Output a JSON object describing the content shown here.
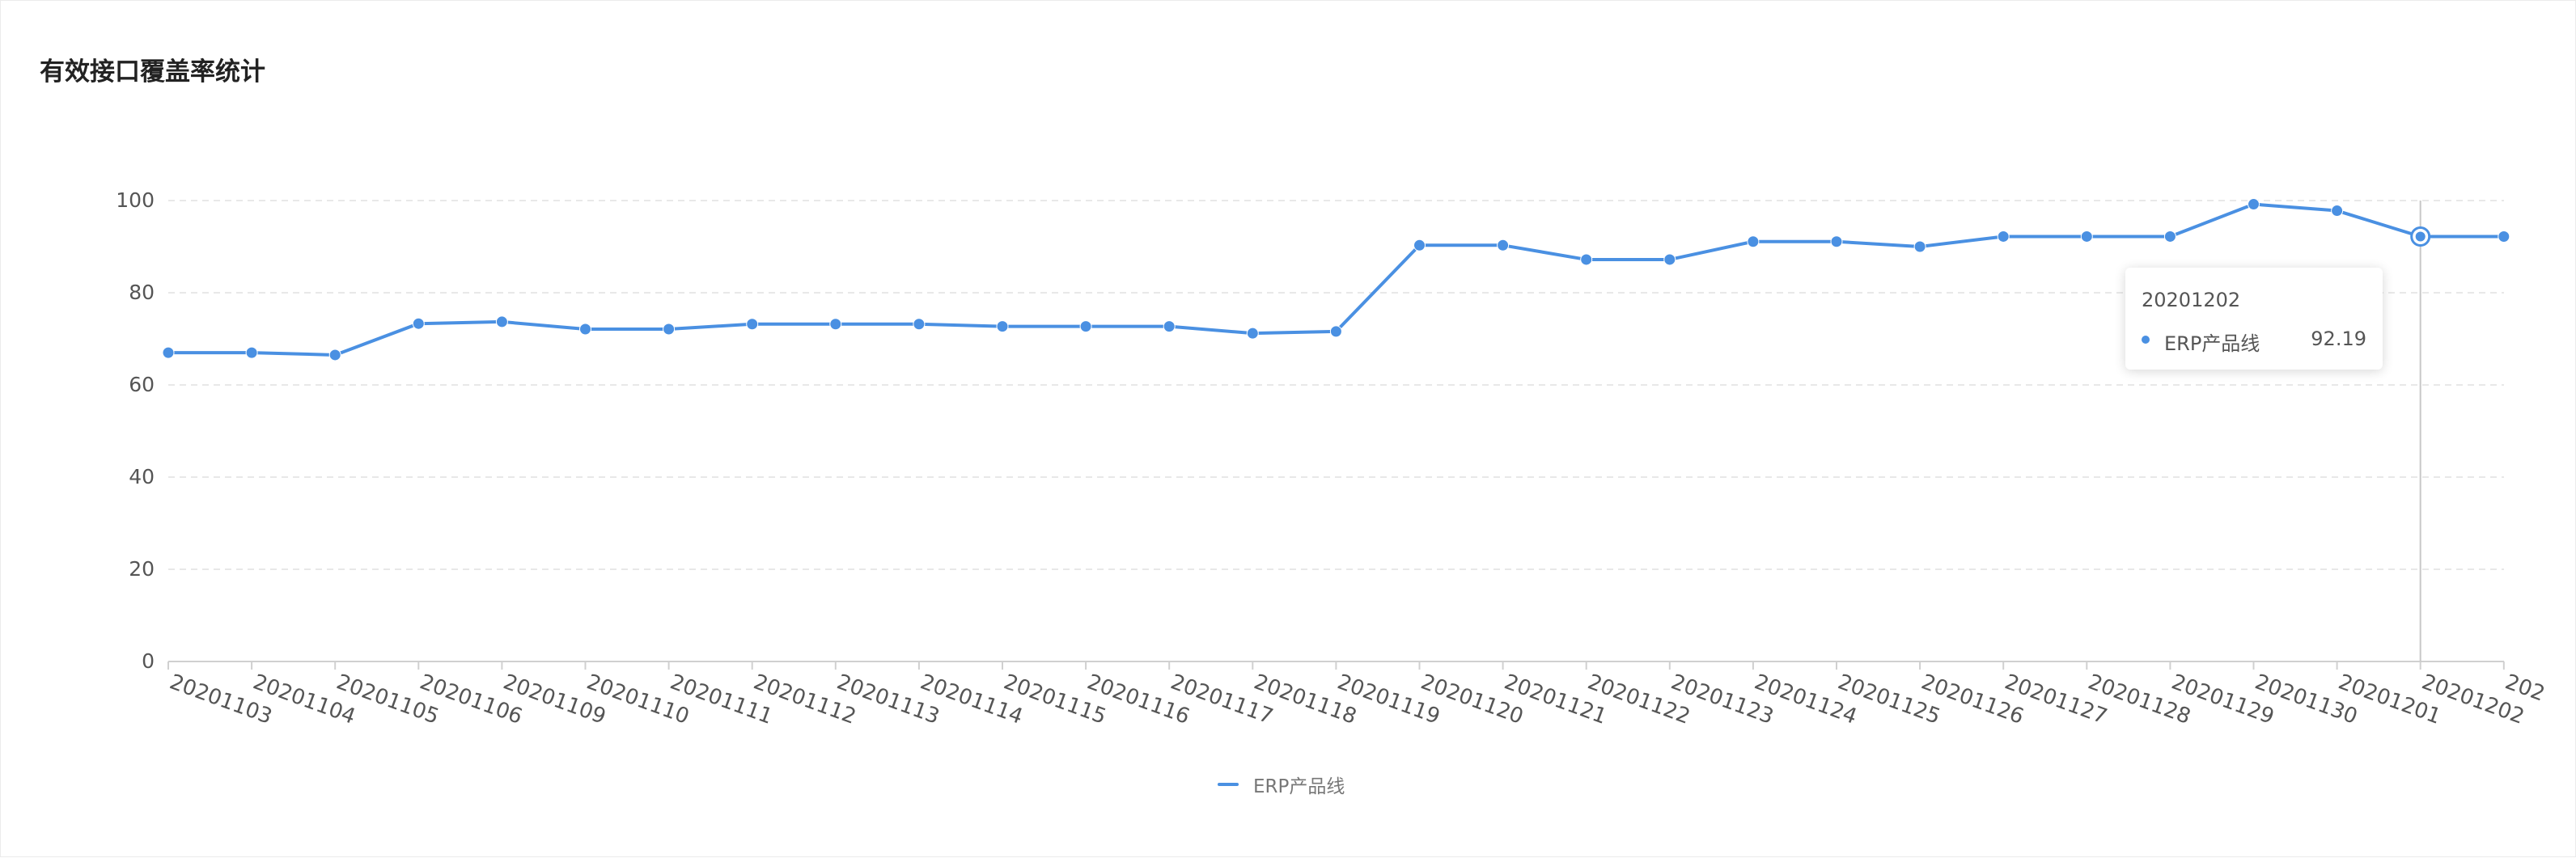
{
  "title": "有效接口覆盖率统计",
  "colors": {
    "series": "#4a90e2",
    "axis": "#d0d0d0",
    "grid": "#e8e8e8",
    "text": "#555555"
  },
  "chart_data": {
    "type": "line",
    "title": "有效接口覆盖率统计",
    "xlabel": "",
    "ylabel": "",
    "ylim": [
      0,
      100
    ],
    "yticks": [
      0,
      20,
      40,
      60,
      80,
      100
    ],
    "grid": true,
    "legend_position": "bottom-center",
    "categories": [
      "20201103",
      "20201104",
      "20201105",
      "20201106",
      "20201109",
      "20201110",
      "20201111",
      "20201112",
      "20201113",
      "20201114",
      "20201115",
      "20201116",
      "20201117",
      "20201118",
      "20201119",
      "20201120",
      "20201121",
      "20201122",
      "20201123",
      "20201124",
      "20201125",
      "20201126",
      "20201127",
      "20201128",
      "20201129",
      "20201130",
      "20201201",
      "20201202",
      "202"
    ],
    "series": [
      {
        "name": "ERP产品线",
        "values": [
          67,
          67,
          66.5,
          73.3,
          73.7,
          72.1,
          72.1,
          73.2,
          73.2,
          73.2,
          72.7,
          72.7,
          72.7,
          71.2,
          71.6,
          90.3,
          90.3,
          87.2,
          87.2,
          91.1,
          91.1,
          90.0,
          92.2,
          92.2,
          92.2,
          99.2,
          97.8,
          92.19,
          92.19
        ]
      }
    ]
  },
  "tooltip": {
    "title": "20201202",
    "series_name": "ERP产品线",
    "value": "92.19",
    "index": 27
  },
  "legend": {
    "label": "ERP产品线"
  }
}
